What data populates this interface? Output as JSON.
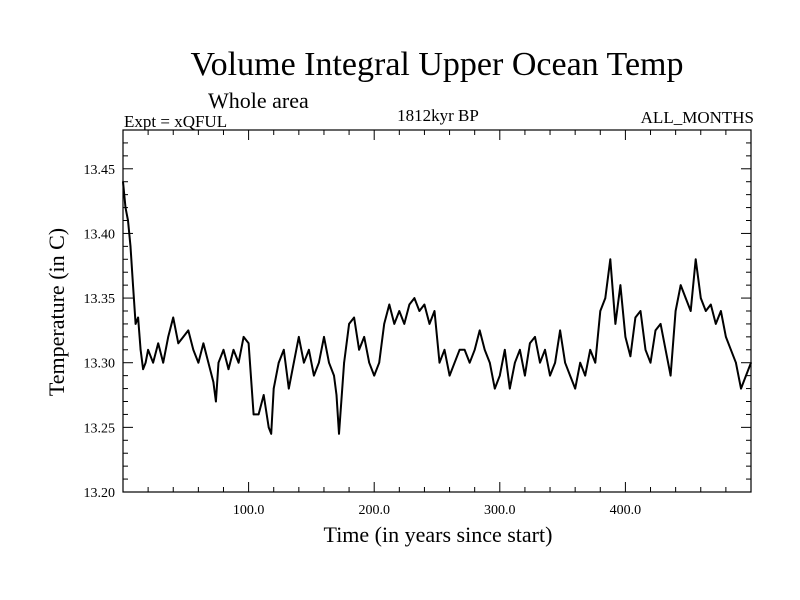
{
  "chart_data": {
    "type": "line",
    "title": "Volume Integral Upper Ocean Temp",
    "subtitle": "Whole area",
    "experiment": "Expt = xQFUL",
    "period": "1812kyr BP",
    "months": "ALL_MONTHS",
    "xlabel": "Time (in years since start)",
    "ylabel": "Temperature (in C)",
    "xlim": [
      0,
      500
    ],
    "ylim": [
      13.2,
      13.48
    ],
    "x_ticks": [
      100,
      200,
      300,
      400
    ],
    "x_tick_labels": [
      "100.0",
      "200.0",
      "300.0",
      "400.0"
    ],
    "y_ticks": [
      13.2,
      13.25,
      13.3,
      13.35,
      13.4,
      13.45
    ],
    "y_tick_labels": [
      "13.20",
      "13.25",
      "13.30",
      "13.35",
      "13.40",
      "13.45"
    ],
    "grid": false,
    "series": [
      {
        "name": "Volume Integral Upper Ocean Temp",
        "color": "#000000",
        "x": [
          0,
          2,
          4,
          6,
          8,
          10,
          12,
          14,
          16,
          18,
          20,
          24,
          28,
          32,
          36,
          40,
          44,
          48,
          52,
          56,
          60,
          64,
          68,
          72,
          74,
          76,
          80,
          84,
          88,
          92,
          96,
          100,
          104,
          108,
          112,
          116,
          118,
          120,
          124,
          128,
          132,
          136,
          140,
          144,
          148,
          152,
          156,
          160,
          164,
          168,
          170,
          172,
          176,
          180,
          184,
          188,
          192,
          196,
          200,
          204,
          208,
          212,
          216,
          220,
          224,
          228,
          232,
          236,
          240,
          244,
          248,
          252,
          256,
          260,
          264,
          268,
          272,
          276,
          280,
          284,
          288,
          292,
          296,
          300,
          304,
          308,
          312,
          316,
          320,
          324,
          328,
          332,
          336,
          340,
          344,
          348,
          352,
          356,
          360,
          364,
          368,
          372,
          376,
          380,
          384,
          388,
          392,
          396,
          400,
          404,
          408,
          412,
          416,
          420,
          424,
          428,
          432,
          436,
          440,
          444,
          448,
          452,
          456,
          460,
          464,
          468,
          472,
          476,
          480,
          484,
          488,
          492,
          496,
          500
        ],
        "values": [
          13.44,
          13.42,
          13.41,
          13.39,
          13.36,
          13.33,
          13.335,
          13.31,
          13.295,
          13.3,
          13.31,
          13.3,
          13.315,
          13.3,
          13.32,
          13.335,
          13.315,
          13.32,
          13.325,
          13.31,
          13.3,
          13.315,
          13.3,
          13.285,
          13.27,
          13.3,
          13.31,
          13.295,
          13.31,
          13.3,
          13.32,
          13.315,
          13.26,
          13.26,
          13.275,
          13.25,
          13.245,
          13.28,
          13.3,
          13.31,
          13.28,
          13.3,
          13.32,
          13.3,
          13.31,
          13.29,
          13.3,
          13.32,
          13.3,
          13.29,
          13.275,
          13.245,
          13.3,
          13.33,
          13.335,
          13.31,
          13.32,
          13.3,
          13.29,
          13.3,
          13.33,
          13.345,
          13.33,
          13.34,
          13.33,
          13.345,
          13.35,
          13.34,
          13.345,
          13.33,
          13.34,
          13.3,
          13.31,
          13.29,
          13.3,
          13.31,
          13.31,
          13.3,
          13.31,
          13.325,
          13.31,
          13.3,
          13.28,
          13.29,
          13.31,
          13.28,
          13.3,
          13.31,
          13.29,
          13.315,
          13.32,
          13.3,
          13.31,
          13.29,
          13.3,
          13.325,
          13.3,
          13.29,
          13.28,
          13.3,
          13.29,
          13.31,
          13.3,
          13.34,
          13.35,
          13.38,
          13.33,
          13.36,
          13.32,
          13.305,
          13.335,
          13.34,
          13.31,
          13.3,
          13.325,
          13.33,
          13.31,
          13.29,
          13.34,
          13.36,
          13.35,
          13.34,
          13.38,
          13.35,
          13.34,
          13.345,
          13.33,
          13.34,
          13.32,
          13.31,
          13.3,
          13.28,
          13.29,
          13.3
        ]
      }
    ]
  }
}
